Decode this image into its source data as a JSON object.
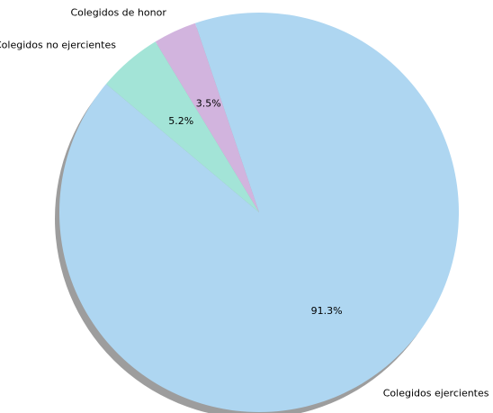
{
  "chart_data": {
    "type": "pie",
    "title": "",
    "start_angle_deg": 140,
    "direction": "counterclockwise",
    "shadow": true,
    "slices": [
      {
        "label": "Colegidos ejercientes",
        "value": 91.3,
        "pct_label": "91.3%",
        "color": "#aed6f1"
      },
      {
        "label": "Colegidos de honor",
        "value": 3.5,
        "pct_label": "3.5%",
        "color": "#d2b4de"
      },
      {
        "label": "Colegidos no ejercientes",
        "value": 5.2,
        "pct_label": "5.2%",
        "color": "#a3e4d7"
      }
    ]
  }
}
